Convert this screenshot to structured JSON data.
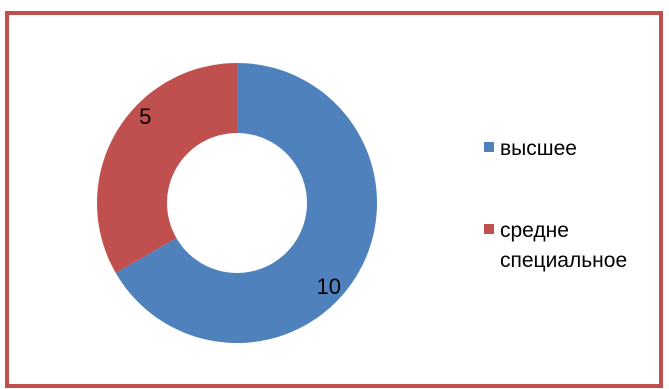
{
  "chart_data": {
    "type": "pie",
    "style": "donut",
    "categories": [
      "высшее",
      "средне специальное"
    ],
    "values": [
      10,
      5
    ],
    "colors": [
      "#4f81bd",
      "#c0504d"
    ],
    "data_labels": [
      "10",
      "5"
    ],
    "legend_position": "right",
    "legend": {
      "items": [
        {
          "label_lines": [
            "высшее"
          ]
        },
        {
          "label_lines": [
            "средне",
            "специальное"
          ]
        }
      ]
    }
  },
  "frame": {
    "border_color": "#c0504d"
  }
}
